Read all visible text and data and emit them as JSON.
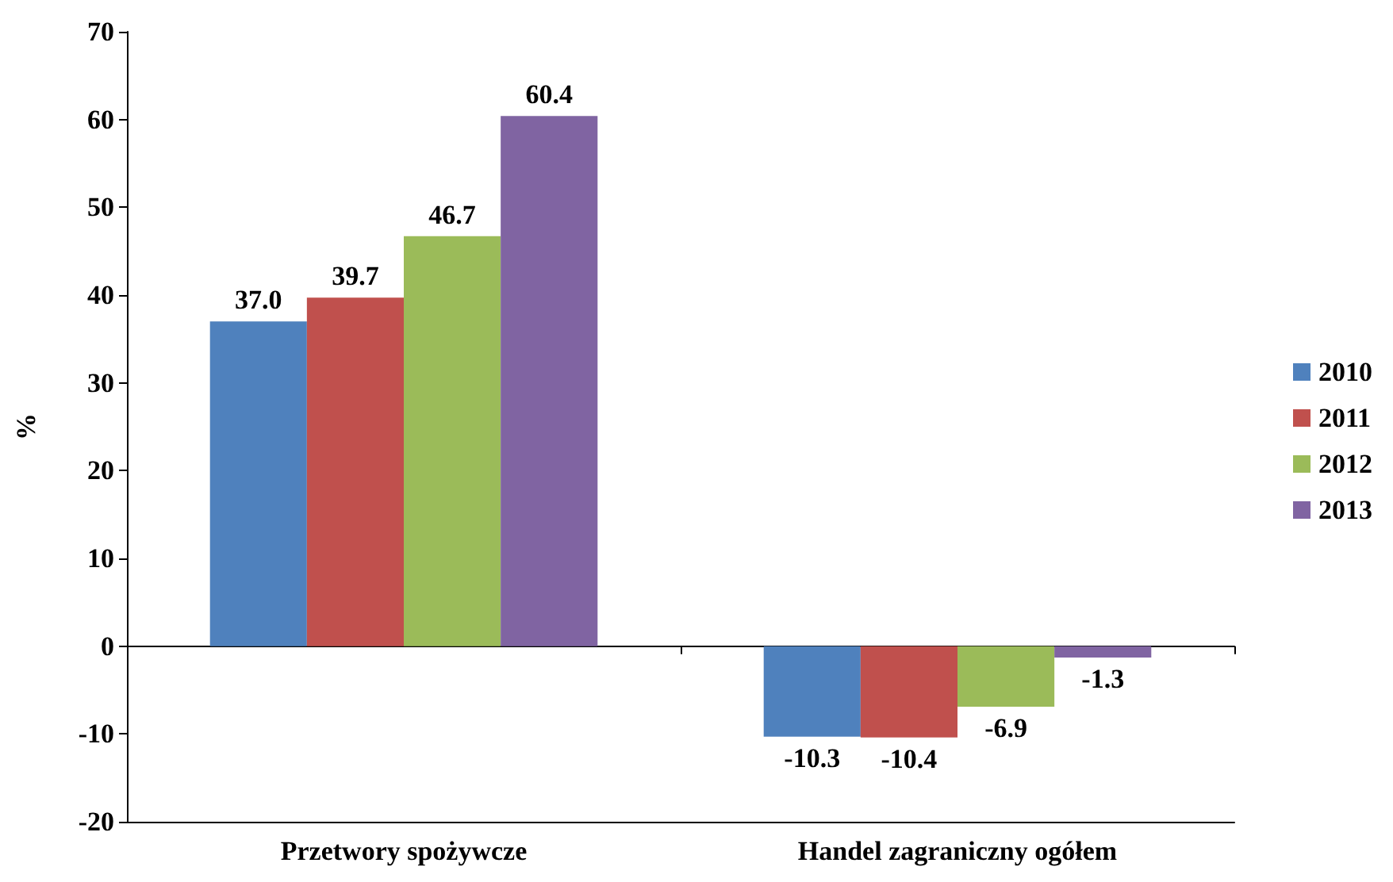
{
  "chart_data": {
    "type": "bar",
    "ylabel": "%",
    "categories": [
      "Przetwory spożywcze",
      "Handel zagraniczny ogółem"
    ],
    "series": [
      {
        "name": "2010",
        "color": "#4f81bd",
        "values": [
          37.0,
          -10.3
        ],
        "value_labels": [
          "37.0",
          "-10.3"
        ]
      },
      {
        "name": "2011",
        "color": "#c0504d",
        "values": [
          39.7,
          -10.4
        ],
        "value_labels": [
          "39.7",
          "-10.4"
        ]
      },
      {
        "name": "2012",
        "color": "#9bbb59",
        "values": [
          46.7,
          -6.9
        ],
        "value_labels": [
          "46.7",
          "-6.9"
        ]
      },
      {
        "name": "2013",
        "color": "#8064a2",
        "values": [
          60.4,
          -1.3
        ],
        "value_labels": [
          "60.4",
          "-1.3"
        ]
      }
    ],
    "ylim": [
      -20,
      70
    ],
    "yticks": [
      -20,
      -10,
      0,
      10,
      20,
      30,
      40,
      50,
      60,
      70
    ],
    "legend": "right"
  }
}
